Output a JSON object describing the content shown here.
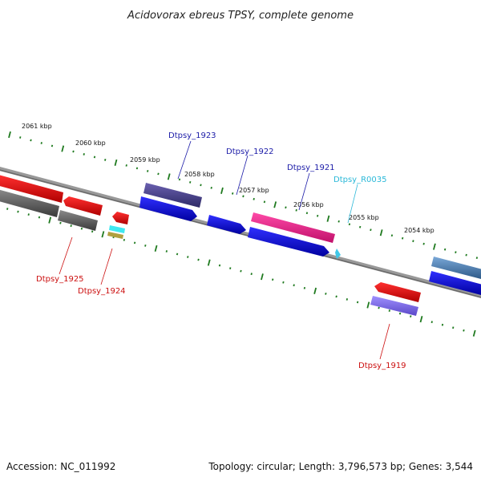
{
  "title": "Acidovorax ebreus TPSY, complete genome",
  "footer": {
    "accession": "Accession: NC_011992",
    "topology": "Topology: circular; Length: 3,796,573 bp; Genes: 3,544"
  },
  "ticks": [
    {
      "label": "2061 kbp"
    },
    {
      "label": "2060 kbp"
    },
    {
      "label": "2059 kbp"
    },
    {
      "label": "2058 kbp"
    },
    {
      "label": "2057 kbp"
    },
    {
      "label": "2056 kbp"
    },
    {
      "label": "2055 kbp"
    },
    {
      "label": "2054 kbp"
    }
  ],
  "gene_labels": [
    {
      "label": "Dtpsy_1923",
      "color": "#1c1ca8"
    },
    {
      "label": "Dtpsy_1922",
      "color": "#1c1ca8"
    },
    {
      "label": "Dtpsy_1921",
      "color": "#1c1ca8"
    },
    {
      "label": "Dtpsy_R0035",
      "color": "#2ab8d8"
    },
    {
      "label": "Dtpsy_1925",
      "color": "#cc1010"
    },
    {
      "label": "Dtpsy_1924",
      "color": "#cc1010"
    },
    {
      "label": "Dtpsy_1919",
      "color": "#cc1010"
    }
  ],
  "colors": {
    "backbone": "#808080",
    "outer_ticks": "#1f7a1f",
    "forward_gene": "#0000e0",
    "reverse_gene": "#e00000",
    "pseudo_gene": "#505050",
    "rna_gene": "#ff1493",
    "trna_gene": "#40c8e8",
    "blue_grey_gene": "#4a7aa8",
    "purple_gene": "#483d8b",
    "violet_gene": "#7b68ee"
  }
}
